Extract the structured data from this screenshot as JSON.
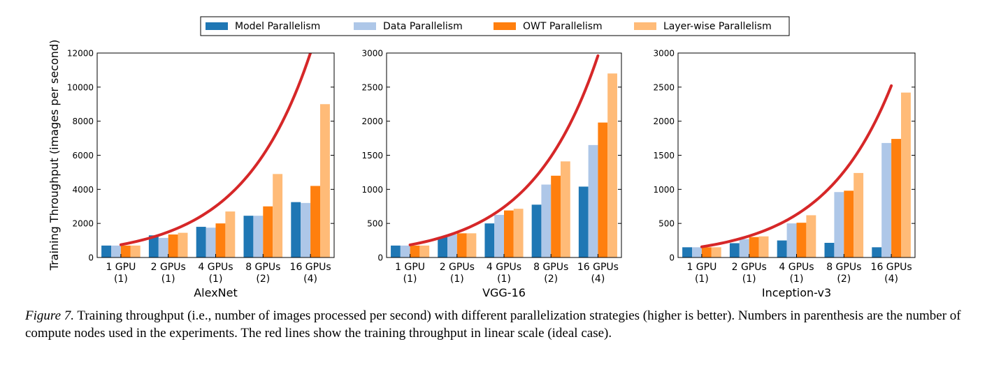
{
  "legend": {
    "placement": "top-center",
    "entries": [
      {
        "label": "Model Parallelism",
        "color": "#1f77b4"
      },
      {
        "label": "Data Parallelism",
        "color": "#aec7e8"
      },
      {
        "label": "OWT Parallelism",
        "color": "#ff7f0e"
      },
      {
        "label": "Layer-wise Parallelism",
        "color": "#ffbb78"
      }
    ]
  },
  "shared_ylabel": "Training Throughput (images per second)",
  "ideal_line_color": "#d62728",
  "chart_data": [
    {
      "type": "bar",
      "title": "AlexNet",
      "xlabel": "AlexNet",
      "ylabel": "Training Throughput (images per second)",
      "categories": [
        "1 GPU",
        "2 GPUs",
        "4 GPUs",
        "8 GPUs",
        "16 GPUs"
      ],
      "category_sublabels": [
        "(1)",
        "(1)",
        "(1)",
        "(2)",
        "(4)"
      ],
      "ylim": [
        0,
        12000
      ],
      "yticks": [
        "0",
        "2000",
        "4000",
        "6000",
        "8000",
        "10000",
        "12000"
      ],
      "series": [
        {
          "name": "Model Parallelism",
          "values": [
            700,
            1300,
            1800,
            2450,
            3250
          ]
        },
        {
          "name": "Data Parallelism",
          "values": [
            700,
            1150,
            1750,
            2450,
            3200
          ]
        },
        {
          "name": "OWT Parallelism",
          "values": [
            700,
            1350,
            2000,
            3000,
            4200
          ]
        },
        {
          "name": "Layer-wise Parallelism",
          "values": [
            700,
            1450,
            2700,
            4900,
            9000
          ]
        }
      ],
      "ideal_curve": {
        "values": [
          750,
          1500,
          3000,
          6000,
          12000
        ]
      }
    },
    {
      "type": "bar",
      "title": "VGG-16",
      "xlabel": "VGG-16",
      "ylabel": "",
      "categories": [
        "1 GPU",
        "2 GPUs",
        "4 GPUs",
        "8 GPUs",
        "16 GPUs"
      ],
      "category_sublabels": [
        "(1)",
        "(1)",
        "(1)",
        "(2)",
        "(4)"
      ],
      "ylim": [
        0,
        3000
      ],
      "yticks": [
        "0",
        "500",
        "1000",
        "1500",
        "2000",
        "2500",
        "3000"
      ],
      "series": [
        {
          "name": "Model Parallelism",
          "values": [
            175,
            300,
            500,
            775,
            1040
          ]
        },
        {
          "name": "Data Parallelism",
          "values": [
            175,
            340,
            625,
            1070,
            1650
          ]
        },
        {
          "name": "OWT Parallelism",
          "values": [
            175,
            355,
            690,
            1200,
            1980
          ]
        },
        {
          "name": "Layer-wise Parallelism",
          "values": [
            175,
            355,
            715,
            1410,
            2700
          ]
        }
      ],
      "ideal_curve": {
        "values": [
          185,
          370,
          740,
          1480,
          2960
        ]
      }
    },
    {
      "type": "bar",
      "title": "Inception-v3",
      "xlabel": "Inception-v3",
      "ylabel": "",
      "categories": [
        "1 GPU",
        "2 GPUs",
        "4 GPUs",
        "8 GPUs",
        "16 GPUs"
      ],
      "category_sublabels": [
        "(1)",
        "(1)",
        "(1)",
        "(2)",
        "(4)"
      ],
      "ylim": [
        0,
        3000
      ],
      "yticks": [
        "0",
        "500",
        "1000",
        "1500",
        "2000",
        "2500",
        "3000"
      ],
      "series": [
        {
          "name": "Model Parallelism",
          "values": [
            150,
            210,
            250,
            215,
            150
          ]
        },
        {
          "name": "Data Parallelism",
          "values": [
            150,
            270,
            500,
            960,
            1680
          ]
        },
        {
          "name": "OWT Parallelism",
          "values": [
            150,
            300,
            510,
            980,
            1740
          ]
        },
        {
          "name": "Layer-wise Parallelism",
          "values": [
            150,
            310,
            620,
            1240,
            2420
          ]
        }
      ],
      "ideal_curve": {
        "values": [
          157,
          315,
          630,
          1260,
          2520
        ]
      }
    }
  ],
  "caption": {
    "lead": "Figure 7.",
    "text": " Training throughput (i.e., number of images processed per second) with different parallelization strategies (higher is better). Numbers in parenthesis are the number of compute nodes used in the experiments. The red lines show the training throughput in linear scale (ideal case)."
  }
}
